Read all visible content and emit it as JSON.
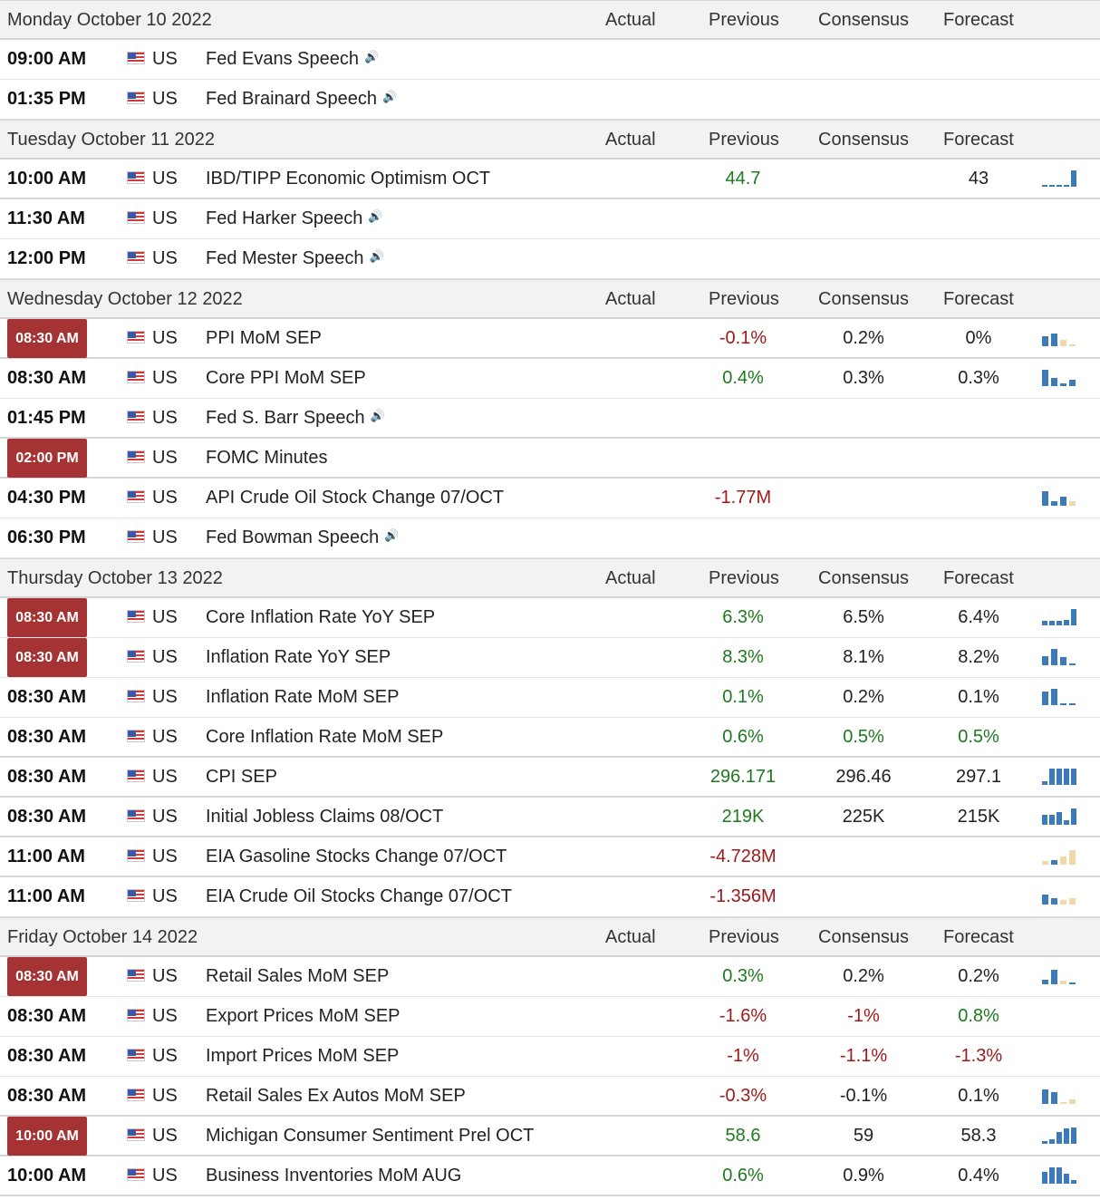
{
  "columns": {
    "actual": "Actual",
    "previous": "Previous",
    "consensus": "Consensus",
    "forecast": "Forecast"
  },
  "colors": {
    "badge": "#a63333",
    "positive": "#1e7a1e",
    "negative": "#a11818",
    "bar_blue": "#3d7ab8",
    "bar_tan": "#f0d9a8"
  },
  "days": [
    {
      "label": "Monday October 10 2022",
      "events": [
        {
          "time": "09:00 AM",
          "badge": false,
          "country": "US",
          "event": "Fed Evans Speech",
          "speech": true,
          "previous": "",
          "prev_color": "",
          "consensus": "",
          "cons_color": "",
          "forecast": "",
          "fc_color": "",
          "chart": []
        },
        {
          "time": "01:35 PM",
          "badge": false,
          "country": "US",
          "event": "Fed Brainard Speech",
          "speech": true,
          "previous": "",
          "prev_color": "",
          "consensus": "",
          "cons_color": "",
          "forecast": "",
          "fc_color": "",
          "chart": []
        }
      ]
    },
    {
      "label": "Tuesday October 11 2022",
      "events": [
        {
          "time": "10:00 AM",
          "badge": false,
          "country": "US",
          "event": "IBD/TIPP Economic Optimism OCT",
          "speech": false,
          "previous": "44.7",
          "prev_color": "pos",
          "consensus": "",
          "cons_color": "",
          "forecast": "43",
          "fc_color": "neu",
          "chart": [
            [
              "b",
              0.08
            ],
            [
              "b",
              0.08
            ],
            [
              "b",
              0.08
            ],
            [
              "b",
              0.08
            ],
            [
              "b",
              1
            ]
          ]
        },
        {
          "time": "11:30 AM",
          "badge": false,
          "country": "US",
          "event": "Fed Harker Speech",
          "speech": true,
          "previous": "",
          "prev_color": "",
          "consensus": "",
          "cons_color": "",
          "forecast": "",
          "fc_color": "",
          "chart": []
        },
        {
          "time": "12:00 PM",
          "badge": false,
          "country": "US",
          "event": "Fed Mester Speech",
          "speech": true,
          "previous": "",
          "prev_color": "",
          "consensus": "",
          "cons_color": "",
          "forecast": "",
          "fc_color": "",
          "chart": []
        }
      ]
    },
    {
      "label": "Wednesday October 12 2022",
      "events": [
        {
          "time": "08:30 AM",
          "badge": true,
          "country": "US",
          "event": "PPI MoM SEP",
          "speech": false,
          "previous": "-0.1%",
          "prev_color": "neg",
          "consensus": "0.2%",
          "cons_color": "neu",
          "forecast": "0%",
          "fc_color": "neu",
          "chart": [
            [
              "b",
              0.6
            ],
            [
              "b",
              0.8
            ],
            [
              "t",
              0.4
            ],
            [
              "t",
              0.1
            ]
          ]
        },
        {
          "time": "08:30 AM",
          "badge": false,
          "country": "US",
          "event": "Core PPI MoM SEP",
          "speech": false,
          "previous": "0.4%",
          "prev_color": "pos",
          "consensus": "0.3%",
          "cons_color": "neu",
          "forecast": "0.3%",
          "fc_color": "neu",
          "chart": [
            [
              "b",
              1
            ],
            [
              "b",
              0.5
            ],
            [
              "b",
              0.15
            ],
            [
              "b",
              0.4
            ]
          ]
        },
        {
          "time": "01:45 PM",
          "badge": false,
          "country": "US",
          "event": "Fed S. Barr Speech",
          "speech": true,
          "previous": "",
          "prev_color": "",
          "consensus": "",
          "cons_color": "",
          "forecast": "",
          "fc_color": "",
          "chart": []
        },
        {
          "time": "02:00 PM",
          "badge": true,
          "country": "US",
          "event": "FOMC Minutes",
          "speech": false,
          "previous": "",
          "prev_color": "",
          "consensus": "",
          "cons_color": "",
          "forecast": "",
          "fc_color": "",
          "chart": []
        },
        {
          "time": "04:30 PM",
          "badge": false,
          "country": "US",
          "event": "API Crude Oil Stock Change 07/OCT",
          "speech": false,
          "previous": "-1.77M",
          "prev_color": "neg",
          "consensus": "",
          "cons_color": "",
          "forecast": "",
          "fc_color": "",
          "chart": [
            [
              "b",
              0.9
            ],
            [
              "b",
              0.3
            ],
            [
              "b",
              0.55
            ],
            [
              "t",
              0.3
            ]
          ]
        },
        {
          "time": "06:30 PM",
          "badge": false,
          "country": "US",
          "event": "Fed Bowman Speech",
          "speech": true,
          "previous": "",
          "prev_color": "",
          "consensus": "",
          "cons_color": "",
          "forecast": "",
          "fc_color": "",
          "chart": []
        }
      ]
    },
    {
      "label": "Thursday October 13 2022",
      "events": [
        {
          "time": "08:30 AM",
          "badge": true,
          "country": "US",
          "event": "Core Inflation Rate YoY SEP",
          "speech": false,
          "previous": "6.3%",
          "prev_color": "pos",
          "consensus": "6.5%",
          "cons_color": "neu",
          "forecast": "6.4%",
          "fc_color": "neu",
          "chart": [
            [
              "b",
              0.3
            ],
            [
              "b",
              0.3
            ],
            [
              "b",
              0.3
            ],
            [
              "b",
              0.35
            ],
            [
              "b",
              1
            ]
          ]
        },
        {
          "time": "08:30 AM",
          "badge": true,
          "country": "US",
          "event": "Inflation Rate YoY SEP",
          "speech": false,
          "previous": "8.3%",
          "prev_color": "pos",
          "consensus": "8.1%",
          "cons_color": "neu",
          "forecast": "8.2%",
          "fc_color": "neu",
          "chart": [
            [
              "b",
              0.55
            ],
            [
              "b",
              1
            ],
            [
              "b",
              0.5
            ],
            [
              "b",
              0.1
            ]
          ]
        },
        {
          "time": "08:30 AM",
          "badge": false,
          "country": "US",
          "event": "Inflation Rate MoM SEP",
          "speech": false,
          "previous": "0.1%",
          "prev_color": "pos",
          "consensus": "0.2%",
          "cons_color": "neu",
          "forecast": "0.1%",
          "fc_color": "neu",
          "chart": [
            [
              "b",
              0.85
            ],
            [
              "b",
              1
            ],
            [
              "b",
              0
            ],
            [
              "b",
              0.08
            ]
          ]
        },
        {
          "time": "08:30 AM",
          "badge": false,
          "country": "US",
          "event": "Core Inflation Rate MoM SEP",
          "speech": false,
          "previous": "0.6%",
          "prev_color": "pos",
          "consensus": "0.5%",
          "cons_color": "pos",
          "forecast": "0.5%",
          "fc_color": "pos",
          "chart": []
        },
        {
          "time": "08:30 AM",
          "badge": false,
          "country": "US",
          "event": "CPI SEP",
          "speech": false,
          "previous": "296.171",
          "prev_color": "pos",
          "consensus": "296.46",
          "cons_color": "neu",
          "forecast": "297.1",
          "fc_color": "neu",
          "chart": [
            [
              "b",
              0.2
            ],
            [
              "b",
              1
            ],
            [
              "b",
              1
            ],
            [
              "b",
              1
            ],
            [
              "b",
              1
            ]
          ]
        },
        {
          "time": "08:30 AM",
          "badge": false,
          "country": "US",
          "event": "Initial Jobless Claims 08/OCT",
          "speech": false,
          "previous": "219K",
          "prev_color": "pos",
          "consensus": "225K",
          "cons_color": "neu",
          "forecast": "215K",
          "fc_color": "neu",
          "chart": [
            [
              "b",
              0.6
            ],
            [
              "b",
              0.6
            ],
            [
              "b",
              0.8
            ],
            [
              "b",
              0.3
            ],
            [
              "b",
              1
            ]
          ]
        },
        {
          "time": "11:00 AM",
          "badge": false,
          "country": "US",
          "event": "EIA Gasoline Stocks Change 07/OCT",
          "speech": false,
          "previous": "-4.728M",
          "prev_color": "neg",
          "consensus": "",
          "cons_color": "",
          "forecast": "",
          "fc_color": "",
          "chart": [
            [
              "t",
              0.2
            ],
            [
              "b",
              0.3
            ],
            [
              "t",
              0.5
            ],
            [
              "t",
              0.9
            ]
          ]
        },
        {
          "time": "11:00 AM",
          "badge": false,
          "country": "US",
          "event": "EIA Crude Oil Stocks Change 07/OCT",
          "speech": false,
          "previous": "-1.356M",
          "prev_color": "neg",
          "consensus": "",
          "cons_color": "",
          "forecast": "",
          "fc_color": "",
          "chart": [
            [
              "b",
              0.6
            ],
            [
              "b",
              0.4
            ],
            [
              "t",
              0.3
            ],
            [
              "t",
              0.4
            ]
          ]
        }
      ]
    },
    {
      "label": "Friday October 14 2022",
      "events": [
        {
          "time": "08:30 AM",
          "badge": true,
          "country": "US",
          "event": "Retail Sales MoM SEP",
          "speech": false,
          "previous": "0.3%",
          "prev_color": "pos",
          "consensus": "0.2%",
          "cons_color": "neu",
          "forecast": "0.2%",
          "fc_color": "neu",
          "chart": [
            [
              "b",
              0.3
            ],
            [
              "b",
              0.9
            ],
            [
              "t",
              0.2
            ],
            [
              "b",
              0.1
            ]
          ]
        },
        {
          "time": "08:30 AM",
          "badge": false,
          "country": "US",
          "event": "Export Prices MoM SEP",
          "speech": false,
          "previous": "-1.6%",
          "prev_color": "neg",
          "consensus": "-1%",
          "cons_color": "neg",
          "forecast": "0.8%",
          "fc_color": "pos",
          "chart": []
        },
        {
          "time": "08:30 AM",
          "badge": false,
          "country": "US",
          "event": "Import Prices MoM SEP",
          "speech": false,
          "previous": "-1%",
          "prev_color": "neg",
          "consensus": "-1.1%",
          "cons_color": "neg",
          "forecast": "-1.3%",
          "fc_color": "neg",
          "chart": []
        },
        {
          "time": "08:30 AM",
          "badge": false,
          "country": "US",
          "event": "Retail Sales Ex Autos MoM SEP",
          "speech": false,
          "previous": "-0.3%",
          "prev_color": "neg",
          "consensus": "-0.1%",
          "cons_color": "neu",
          "forecast": "0.1%",
          "fc_color": "neu",
          "chart": [
            [
              "b",
              0.9
            ],
            [
              "b",
              0.7
            ],
            [
              "t",
              0
            ],
            [
              "t",
              0.3
            ]
          ]
        },
        {
          "time": "10:00 AM",
          "badge": true,
          "country": "US",
          "event": "Michigan Consumer Sentiment Prel OCT",
          "speech": false,
          "previous": "58.6",
          "prev_color": "pos",
          "consensus": "59",
          "cons_color": "neu",
          "forecast": "58.3",
          "fc_color": "neu",
          "chart": [
            [
              "b",
              0.15
            ],
            [
              "b",
              0.25
            ],
            [
              "b",
              0.7
            ],
            [
              "b",
              0.95
            ],
            [
              "b",
              1
            ]
          ]
        },
        {
          "time": "10:00 AM",
          "badge": false,
          "country": "US",
          "event": "Business Inventories MoM AUG",
          "speech": false,
          "previous": "0.6%",
          "prev_color": "pos",
          "consensus": "0.9%",
          "cons_color": "neu",
          "forecast": "0.4%",
          "fc_color": "neu",
          "chart": [
            [
              "b",
              0.7
            ],
            [
              "b",
              1
            ],
            [
              "b",
              1
            ],
            [
              "b",
              0.6
            ],
            [
              "b",
              0.2
            ]
          ]
        }
      ]
    }
  ]
}
